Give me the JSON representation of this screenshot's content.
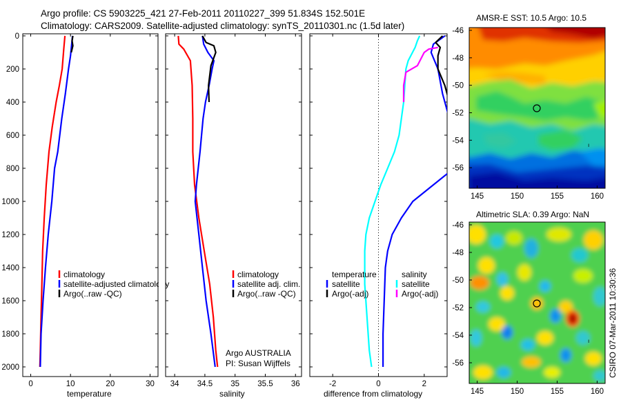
{
  "title": {
    "line1": "Argo profile: CS 5903225_421 27-Feb-2011 20110227_399 51.834S 152.501E",
    "line2": "Climatology: CARS2009. Satellite-adjusted climatology: synTS_20110301.nc (1.5d later)"
  },
  "panels": {
    "temperature": {
      "xlabel": "temperature",
      "xticks": [
        "0",
        "10",
        "20",
        "30"
      ],
      "legend": [
        "climatology",
        "satellite-adjusted climatology",
        "Argo(..raw -QC)"
      ]
    },
    "salinity": {
      "xlabel": "salinity",
      "xticks": [
        "34",
        "34.5",
        "35",
        "35.5",
        "36"
      ],
      "legend": [
        "climatology",
        "satellite adj. clim.",
        "Argo(..raw -QC)"
      ],
      "note1": "Argo AUSTRALIA",
      "note2": "PI: Susan Wijffels"
    },
    "difference": {
      "xlabel": "difference from climatology",
      "xticks": [
        "-2",
        "0",
        "2"
      ],
      "legend_left_title": "temperature",
      "legend_left": [
        "satellite",
        "Argo(-adj)"
      ],
      "legend_right_title": "salinity",
      "legend_right": [
        "satellite",
        "Argo(-adj)"
      ]
    }
  },
  "yticks": [
    "0",
    "200",
    "400",
    "600",
    "800",
    "1000",
    "1200",
    "1400",
    "1600",
    "1800",
    "2000"
  ],
  "maps": {
    "sst": {
      "title": "AMSR-E SST: 10.5 Argo: 10.5"
    },
    "sla": {
      "title": "Altimetric SLA: 0.39 Argo: NaN"
    },
    "lat_ticks": [
      "-46",
      "-48",
      "-50",
      "-52",
      "-54",
      "-56"
    ],
    "lon_ticks": [
      "145",
      "150",
      "155",
      "160"
    ],
    "float_position": {
      "lon": 152.5,
      "lat": -51.83
    },
    "credit": "CSIRO 07-Mar-2011 10:30:36"
  },
  "colors": {
    "climatology": "#ff0000",
    "satellite": "#0000ff",
    "argo": "#000000",
    "sal_satellite": "#00ffff",
    "sal_argo": "#ff00ff"
  },
  "chart_data": [
    {
      "type": "line",
      "xlabel": "temperature",
      "ylabel": "",
      "xlim": [
        -2,
        32
      ],
      "ylim": [
        2050,
        0
      ],
      "series": [
        {
          "name": "climatology",
          "points": [
            [
              8.6,
              0
            ],
            [
              8.3,
              80
            ],
            [
              7.9,
              200
            ],
            [
              7.2,
              300
            ],
            [
              6.4,
              400
            ],
            [
              5.4,
              550
            ],
            [
              4.6,
              700
            ],
            [
              3.9,
              900
            ],
            [
              3.4,
              1100
            ],
            [
              3.0,
              1300
            ],
            [
              2.8,
              1500
            ],
            [
              2.6,
              1700
            ],
            [
              2.4,
              1900
            ],
            [
              2.3,
              2000
            ]
          ]
        },
        {
          "name": "satellite-adjusted climatology",
          "points": [
            [
              10.5,
              0
            ],
            [
              10.3,
              50
            ],
            [
              10.0,
              120
            ],
            [
              9.5,
              200
            ],
            [
              8.7,
              350
            ],
            [
              7.8,
              500
            ],
            [
              6.8,
              700
            ],
            [
              6.0,
              800
            ],
            [
              5.3,
              1000
            ],
            [
              4.4,
              1200
            ],
            [
              3.7,
              1400
            ],
            [
              3.1,
              1600
            ],
            [
              2.6,
              1800
            ],
            [
              2.4,
              2000
            ]
          ]
        },
        {
          "name": "Argo(..raw -QC)",
          "points": [
            [
              10.6,
              0
            ],
            [
              10.4,
              30
            ],
            [
              10.6,
              60
            ],
            [
              10.2,
              100
            ]
          ]
        }
      ]
    },
    {
      "type": "line",
      "xlabel": "salinity",
      "ylabel": "",
      "xlim": [
        33.85,
        36.1
      ],
      "ylim": [
        2050,
        0
      ],
      "series": [
        {
          "name": "climatology",
          "points": [
            [
              34.06,
              0
            ],
            [
              34.07,
              50
            ],
            [
              34.15,
              80
            ],
            [
              34.26,
              150
            ],
            [
              34.29,
              300
            ],
            [
              34.3,
              500
            ],
            [
              34.3,
              700
            ],
            [
              34.33,
              900
            ],
            [
              34.4,
              1100
            ],
            [
              34.49,
              1300
            ],
            [
              34.58,
              1500
            ],
            [
              34.64,
              1700
            ],
            [
              34.68,
              1900
            ],
            [
              34.71,
              2000
            ]
          ]
        },
        {
          "name": "satellite adj. clim.",
          "points": [
            [
              34.46,
              0
            ],
            [
              34.48,
              50
            ],
            [
              34.55,
              100
            ],
            [
              34.65,
              150
            ],
            [
              34.62,
              200
            ],
            [
              34.57,
              300
            ],
            [
              34.51,
              400
            ],
            [
              34.47,
              500
            ],
            [
              34.42,
              700
            ],
            [
              34.36,
              900
            ],
            [
              34.34,
              1000
            ],
            [
              34.4,
              1200
            ],
            [
              34.46,
              1400
            ],
            [
              34.52,
              1600
            ],
            [
              34.6,
              1800
            ],
            [
              34.67,
              2000
            ]
          ]
        },
        {
          "name": "Argo(..raw -QC)",
          "points": [
            [
              34.46,
              0
            ],
            [
              34.52,
              40
            ],
            [
              34.65,
              60
            ],
            [
              34.68,
              100
            ],
            [
              34.6,
              180
            ],
            [
              34.56,
              300
            ],
            [
              34.57,
              400
            ]
          ]
        }
      ]
    },
    {
      "type": "line",
      "xlabel": "difference from climatology",
      "ylabel": "",
      "xlim": [
        -3.0,
        3.0
      ],
      "ylim": [
        2050,
        0
      ],
      "series": [
        {
          "name": "satellite (temperature)",
          "points": [
            [
              2.9,
              0
            ],
            [
              2.4,
              50
            ],
            [
              2.3,
              100
            ],
            [
              2.6,
              200
            ],
            [
              2.8,
              350
            ],
            [
              3.1,
              500
            ],
            [
              3.3,
              800
            ],
            [
              2.4,
              900
            ],
            [
              1.5,
              1000
            ],
            [
              1.0,
              1100
            ],
            [
              0.6,
              1200
            ],
            [
              0.4,
              1300
            ],
            [
              0.3,
              1400
            ],
            [
              0.25,
              1600
            ],
            [
              0.2,
              1800
            ],
            [
              0.2,
              2000
            ]
          ]
        },
        {
          "name": "Argo(-adj) (temperature)",
          "points": [
            [
              2.8,
              0
            ],
            [
              2.5,
              40
            ],
            [
              2.7,
              70
            ],
            [
              2.6,
              120
            ],
            [
              2.6,
              200
            ],
            [
              2.9,
              300
            ],
            [
              3.1,
              400
            ]
          ]
        },
        {
          "name": "satellite (salinity)",
          "points": [
            [
              1.8,
              0
            ],
            [
              1.7,
              30
            ],
            [
              1.6,
              70
            ],
            [
              1.3,
              150
            ],
            [
              1.2,
              200
            ],
            [
              1.15,
              300
            ],
            [
              1.1,
              400
            ],
            [
              1.0,
              500
            ],
            [
              0.9,
              600
            ],
            [
              0.7,
              700
            ],
            [
              0.4,
              800
            ],
            [
              0.1,
              900
            ],
            [
              -0.15,
              1000
            ],
            [
              -0.4,
              1100
            ],
            [
              -0.55,
              1200
            ],
            [
              -0.6,
              1300
            ],
            [
              -0.6,
              1500
            ],
            [
              -0.5,
              1700
            ],
            [
              -0.4,
              1900
            ],
            [
              -0.3,
              2000
            ]
          ]
        },
        {
          "name": "Argo(-adj) (salinity)",
          "points": [
            [
              2.6,
              70
            ],
            [
              2.2,
              80
            ],
            [
              2.0,
              100
            ],
            [
              1.7,
              180
            ],
            [
              1.2,
              220
            ],
            [
              1.1,
              300
            ],
            [
              1.1,
              400
            ]
          ]
        }
      ]
    },
    {
      "type": "heatmap",
      "title": "AMSR-E SST: 10.5 Argo: 10.5",
      "xlim": [
        144,
        161
      ],
      "ylim": [
        -57.5,
        -45.8
      ],
      "description_value": 10.5
    },
    {
      "type": "heatmap",
      "title": "Altimetric SLA: 0.39 Argo: NaN",
      "xlim": [
        144,
        161
      ],
      "ylim": [
        -57.5,
        -45.8
      ],
      "description_value": 0.39
    }
  ]
}
